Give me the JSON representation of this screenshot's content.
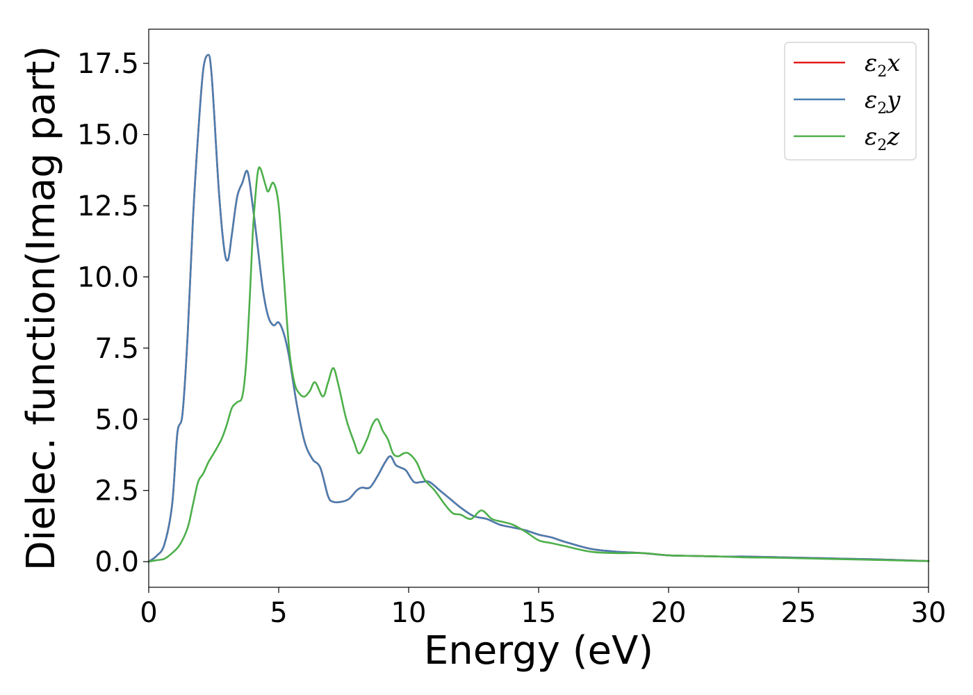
{
  "chart_data": {
    "type": "line",
    "xlabel": "Energy (eV)",
    "ylabel": "Dielec. function(Imag part)",
    "xlim": [
      0,
      30
    ],
    "ylim": [
      -0.9,
      18.7
    ],
    "xticks": [
      0,
      5,
      10,
      15,
      20,
      25,
      30
    ],
    "xtick_labels": [
      "0",
      "5",
      "10",
      "15",
      "20",
      "25",
      "30"
    ],
    "yticks": [
      0.0,
      2.5,
      5.0,
      7.5,
      10.0,
      12.5,
      15.0,
      17.5
    ],
    "ytick_labels": [
      "0.0",
      "2.5",
      "5.0",
      "7.5",
      "10.0",
      "12.5",
      "15.0",
      "17.5"
    ],
    "grid": false,
    "legend_position": "top-right",
    "series": [
      {
        "name": "ε2x",
        "symbol": "ε",
        "subscript": "2",
        "suffix": "x",
        "color": "#e41a1c",
        "x": [
          0,
          0.3,
          0.6,
          0.9,
          1.1,
          1.3,
          1.5,
          1.7,
          1.9,
          2.1,
          2.3,
          2.4,
          2.5,
          2.7,
          2.9,
          3.05,
          3.2,
          3.4,
          3.6,
          3.8,
          4.0,
          4.2,
          4.4,
          4.6,
          4.8,
          5.0,
          5.2,
          5.4,
          5.7,
          6.0,
          6.3,
          6.6,
          6.9,
          7.1,
          7.4,
          7.7,
          8.0,
          8.2,
          8.5,
          8.8,
          9.1,
          9.3,
          9.5,
          9.7,
          9.9,
          10.2,
          10.5,
          10.8,
          11.2,
          11.6,
          12.0,
          12.5,
          13.0,
          13.5,
          14.0,
          14.5,
          15.0,
          15.5,
          16.0,
          17.0,
          18.0,
          19.0,
          20.0,
          21.0,
          22.0,
          23.0,
          24.0,
          25.0,
          26.0,
          27.0,
          28.0,
          29.0,
          30.0
        ],
        "values": [
          0.0,
          0.2,
          0.6,
          2.0,
          4.5,
          5.2,
          8.0,
          12.0,
          15.0,
          17.3,
          17.8,
          17.3,
          16.0,
          13.0,
          11.0,
          10.6,
          11.5,
          12.8,
          13.3,
          13.7,
          12.5,
          11.0,
          9.5,
          8.6,
          8.3,
          8.4,
          8.0,
          7.2,
          5.5,
          4.2,
          3.6,
          3.3,
          2.3,
          2.1,
          2.1,
          2.2,
          2.5,
          2.6,
          2.6,
          3.0,
          3.5,
          3.7,
          3.4,
          3.3,
          3.2,
          2.8,
          2.8,
          2.8,
          2.5,
          2.2,
          1.9,
          1.6,
          1.5,
          1.3,
          1.2,
          1.1,
          0.95,
          0.85,
          0.7,
          0.45,
          0.35,
          0.3,
          0.22,
          0.2,
          0.18,
          0.18,
          0.16,
          0.14,
          0.12,
          0.1,
          0.08,
          0.05,
          0.02
        ]
      },
      {
        "name": "ε2y",
        "symbol": "ε",
        "subscript": "2",
        "suffix": "y",
        "color": "#4a7eb0",
        "x": [
          0,
          0.3,
          0.6,
          0.9,
          1.1,
          1.3,
          1.5,
          1.7,
          1.9,
          2.1,
          2.3,
          2.4,
          2.5,
          2.7,
          2.9,
          3.05,
          3.2,
          3.4,
          3.6,
          3.8,
          4.0,
          4.2,
          4.4,
          4.6,
          4.8,
          5.0,
          5.2,
          5.4,
          5.7,
          6.0,
          6.3,
          6.6,
          6.9,
          7.1,
          7.4,
          7.7,
          8.0,
          8.2,
          8.5,
          8.8,
          9.1,
          9.3,
          9.5,
          9.7,
          9.9,
          10.2,
          10.5,
          10.8,
          11.2,
          11.6,
          12.0,
          12.5,
          13.0,
          13.5,
          14.0,
          14.5,
          15.0,
          15.5,
          16.0,
          17.0,
          18.0,
          19.0,
          20.0,
          21.0,
          22.0,
          23.0,
          24.0,
          25.0,
          26.0,
          27.0,
          28.0,
          29.0,
          30.0
        ],
        "values": [
          0.0,
          0.2,
          0.6,
          2.0,
          4.5,
          5.2,
          8.0,
          12.0,
          15.0,
          17.3,
          17.8,
          17.3,
          16.0,
          13.0,
          11.0,
          10.6,
          11.5,
          12.8,
          13.3,
          13.7,
          12.5,
          11.0,
          9.5,
          8.6,
          8.3,
          8.4,
          8.0,
          7.2,
          5.5,
          4.2,
          3.6,
          3.3,
          2.3,
          2.1,
          2.1,
          2.2,
          2.5,
          2.6,
          2.6,
          3.0,
          3.5,
          3.7,
          3.4,
          3.3,
          3.2,
          2.8,
          2.8,
          2.8,
          2.5,
          2.2,
          1.9,
          1.6,
          1.5,
          1.3,
          1.2,
          1.1,
          0.95,
          0.85,
          0.7,
          0.45,
          0.35,
          0.3,
          0.22,
          0.2,
          0.18,
          0.18,
          0.16,
          0.14,
          0.12,
          0.1,
          0.08,
          0.05,
          0.02
        ]
      },
      {
        "name": "ε2z",
        "symbol": "ε",
        "subscript": "2",
        "suffix": "z",
        "color": "#4daf4a",
        "x": [
          0,
          0.3,
          0.6,
          0.9,
          1.2,
          1.5,
          1.7,
          1.9,
          2.1,
          2.3,
          2.5,
          2.8,
          3.0,
          3.2,
          3.4,
          3.6,
          3.75,
          3.9,
          4.0,
          4.1,
          4.2,
          4.3,
          4.5,
          4.6,
          4.8,
          5.0,
          5.2,
          5.4,
          5.6,
          5.8,
          6.0,
          6.2,
          6.4,
          6.7,
          6.9,
          7.1,
          7.3,
          7.6,
          7.9,
          8.1,
          8.4,
          8.6,
          8.8,
          9.0,
          9.2,
          9.4,
          9.6,
          9.8,
          10.0,
          10.3,
          10.6,
          11.0,
          11.4,
          11.7,
          12.0,
          12.4,
          12.8,
          13.2,
          13.6,
          14.0,
          14.5,
          15.0,
          15.5,
          16.0,
          17.0,
          18.0,
          19.0,
          20.0,
          21.0,
          22.0,
          23.0,
          24.0,
          25.0,
          26.0,
          27.0,
          28.0,
          29.0,
          30.0
        ],
        "values": [
          0.0,
          0.05,
          0.1,
          0.3,
          0.6,
          1.2,
          2.0,
          2.8,
          3.1,
          3.5,
          3.8,
          4.3,
          4.8,
          5.4,
          5.6,
          5.8,
          7.0,
          9.5,
          11.5,
          12.8,
          13.7,
          13.8,
          13.2,
          13.0,
          13.3,
          12.5,
          10.0,
          7.5,
          6.3,
          5.9,
          5.8,
          6.0,
          6.3,
          5.8,
          6.3,
          6.8,
          6.2,
          5.0,
          4.2,
          3.8,
          4.3,
          4.8,
          5.0,
          4.6,
          4.3,
          3.8,
          3.7,
          3.8,
          3.8,
          3.5,
          2.9,
          2.5,
          2.0,
          1.7,
          1.65,
          1.5,
          1.8,
          1.5,
          1.4,
          1.3,
          1.05,
          0.75,
          0.65,
          0.55,
          0.35,
          0.3,
          0.3,
          0.22,
          0.2,
          0.18,
          0.15,
          0.14,
          0.12,
          0.1,
          0.08,
          0.06,
          0.04,
          0.02
        ]
      }
    ]
  }
}
